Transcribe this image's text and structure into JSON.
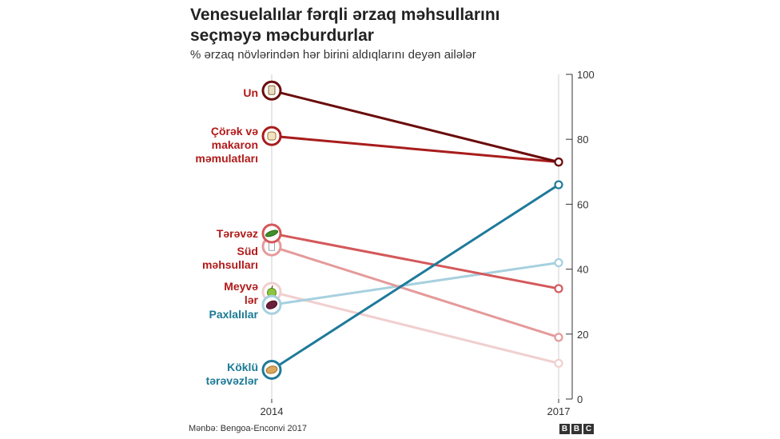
{
  "title_lines": [
    "Venesuelalılar fərqli ərzaq məhsullarını",
    "seçməyə məcburdurlar"
  ],
  "subtitle": "% ərzaq növlərindən hər birini aldıqlarını deyən ailələr",
  "source": "Mənbə: Bengoa-Enconvi 2017",
  "logo": [
    "B",
    "B",
    "C"
  ],
  "chart_data": {
    "type": "line",
    "title": "Venesuelalılar fərqli ərzaq məhsullarını seçməyə məcburdurlar",
    "subtitle": "% ərzaq növlərindən hər birini aldıqlarını deyən ailələr",
    "x": [
      "2014",
      "2017"
    ],
    "ylim": [
      0,
      100
    ],
    "yticks": [
      0,
      20,
      40,
      60,
      80,
      100
    ],
    "series": [
      {
        "name": "Un",
        "label_lines": [
          "Un"
        ],
        "values": [
          95,
          73
        ],
        "color": "#6b0c0c",
        "label_color": "#b11a1a",
        "icon": "flour-bag-icon"
      },
      {
        "name": "Çörək və makaron məmulatları",
        "label_lines": [
          "Çörək və",
          "makaron",
          "məmulatları"
        ],
        "values": [
          81,
          73
        ],
        "color": "#a81c1c",
        "label_color": "#b11a1a",
        "icon": "bread-icon"
      },
      {
        "name": "Tərəvəz",
        "label_lines": [
          "Tərəvəz"
        ],
        "values": [
          51,
          34
        ],
        "color": "#d4585a",
        "label_color": "#b11a1a",
        "icon": "cucumber-icon"
      },
      {
        "name": "Süd məhsulları",
        "label_lines": [
          "Süd",
          "məhsulları"
        ],
        "values": [
          47,
          19
        ],
        "color": "#e59a9a",
        "label_color": "#b11a1a",
        "icon": "milk-carton-icon"
      },
      {
        "name": "Meyvələr",
        "label_lines": [
          "Meyvə",
          "lər"
        ],
        "values": [
          33,
          11
        ],
        "color": "#f1cfcf",
        "label_color": "#b11a1a",
        "icon": "apple-icon"
      },
      {
        "name": "Paxlalılar",
        "label_lines": [
          "Paxlalılar"
        ],
        "values": [
          29,
          42
        ],
        "color": "#a7d0df",
        "label_color": "#1b7a95",
        "icon": "bean-icon"
      },
      {
        "name": "Köklü tərəvəzlər",
        "label_lines": [
          "Köklü",
          "tərəvəzlər"
        ],
        "values": [
          9,
          66
        ],
        "color": "#1f7a9a",
        "label_color": "#1b7a95",
        "icon": "potato-icon"
      }
    ]
  }
}
